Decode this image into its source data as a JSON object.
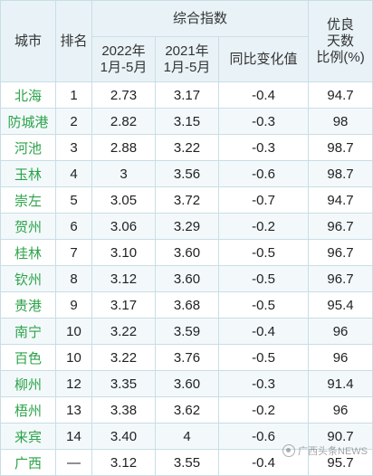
{
  "headers": {
    "city": "城市",
    "rank": "排名",
    "composite_index": "综合指数",
    "y2022": "2022年\n1月-5月",
    "y2021": "2021年\n1月-5月",
    "change": "同比变化值",
    "good_days": "优良\n天数\n比例(%)"
  },
  "rows": [
    {
      "city": "北海",
      "rank": "1",
      "v2022": "2.73",
      "v2021": "3.17",
      "change": "-0.4",
      "good": "94.7"
    },
    {
      "city": "防城港",
      "rank": "2",
      "v2022": "2.82",
      "v2021": "3.15",
      "change": "-0.3",
      "good": "98"
    },
    {
      "city": "河池",
      "rank": "3",
      "v2022": "2.88",
      "v2021": "3.22",
      "change": "-0.3",
      "good": "98.7"
    },
    {
      "city": "玉林",
      "rank": "4",
      "v2022": "3",
      "v2021": "3.56",
      "change": "-0.6",
      "good": "98.7"
    },
    {
      "city": "崇左",
      "rank": "5",
      "v2022": "3.05",
      "v2021": "3.72",
      "change": "-0.7",
      "good": "94.7"
    },
    {
      "city": "贺州",
      "rank": "6",
      "v2022": "3.06",
      "v2021": "3.29",
      "change": "-0.2",
      "good": "96.7"
    },
    {
      "city": "桂林",
      "rank": "7",
      "v2022": "3.10",
      "v2021": "3.60",
      "change": "-0.5",
      "good": "96.7"
    },
    {
      "city": "钦州",
      "rank": "8",
      "v2022": "3.12",
      "v2021": "3.60",
      "change": "-0.5",
      "good": "96.7"
    },
    {
      "city": "贵港",
      "rank": "9",
      "v2022": "3.17",
      "v2021": "3.68",
      "change": "-0.5",
      "good": "95.4"
    },
    {
      "city": "南宁",
      "rank": "10",
      "v2022": "3.22",
      "v2021": "3.59",
      "change": "-0.4",
      "good": "96"
    },
    {
      "city": "百色",
      "rank": "10",
      "v2022": "3.22",
      "v2021": "3.76",
      "change": "-0.5",
      "good": "96"
    },
    {
      "city": "柳州",
      "rank": "12",
      "v2022": "3.35",
      "v2021": "3.60",
      "change": "-0.3",
      "good": "91.4"
    },
    {
      "city": "梧州",
      "rank": "13",
      "v2022": "3.38",
      "v2021": "3.62",
      "change": "-0.2",
      "good": "96"
    },
    {
      "city": "来宾",
      "rank": "14",
      "v2022": "3.40",
      "v2021": "4",
      "change": "-0.6",
      "good": "90.7"
    },
    {
      "city": "广西",
      "rank": "—",
      "v2022": "3.12",
      "v2021": "3.55",
      "change": "-0.4",
      "good": "95.7"
    }
  ],
  "watermark": "广西头条NEWS",
  "colors": {
    "city_text": "#2ca34a",
    "header_bg": "#e9f3f7",
    "border": "#c9dde6"
  }
}
